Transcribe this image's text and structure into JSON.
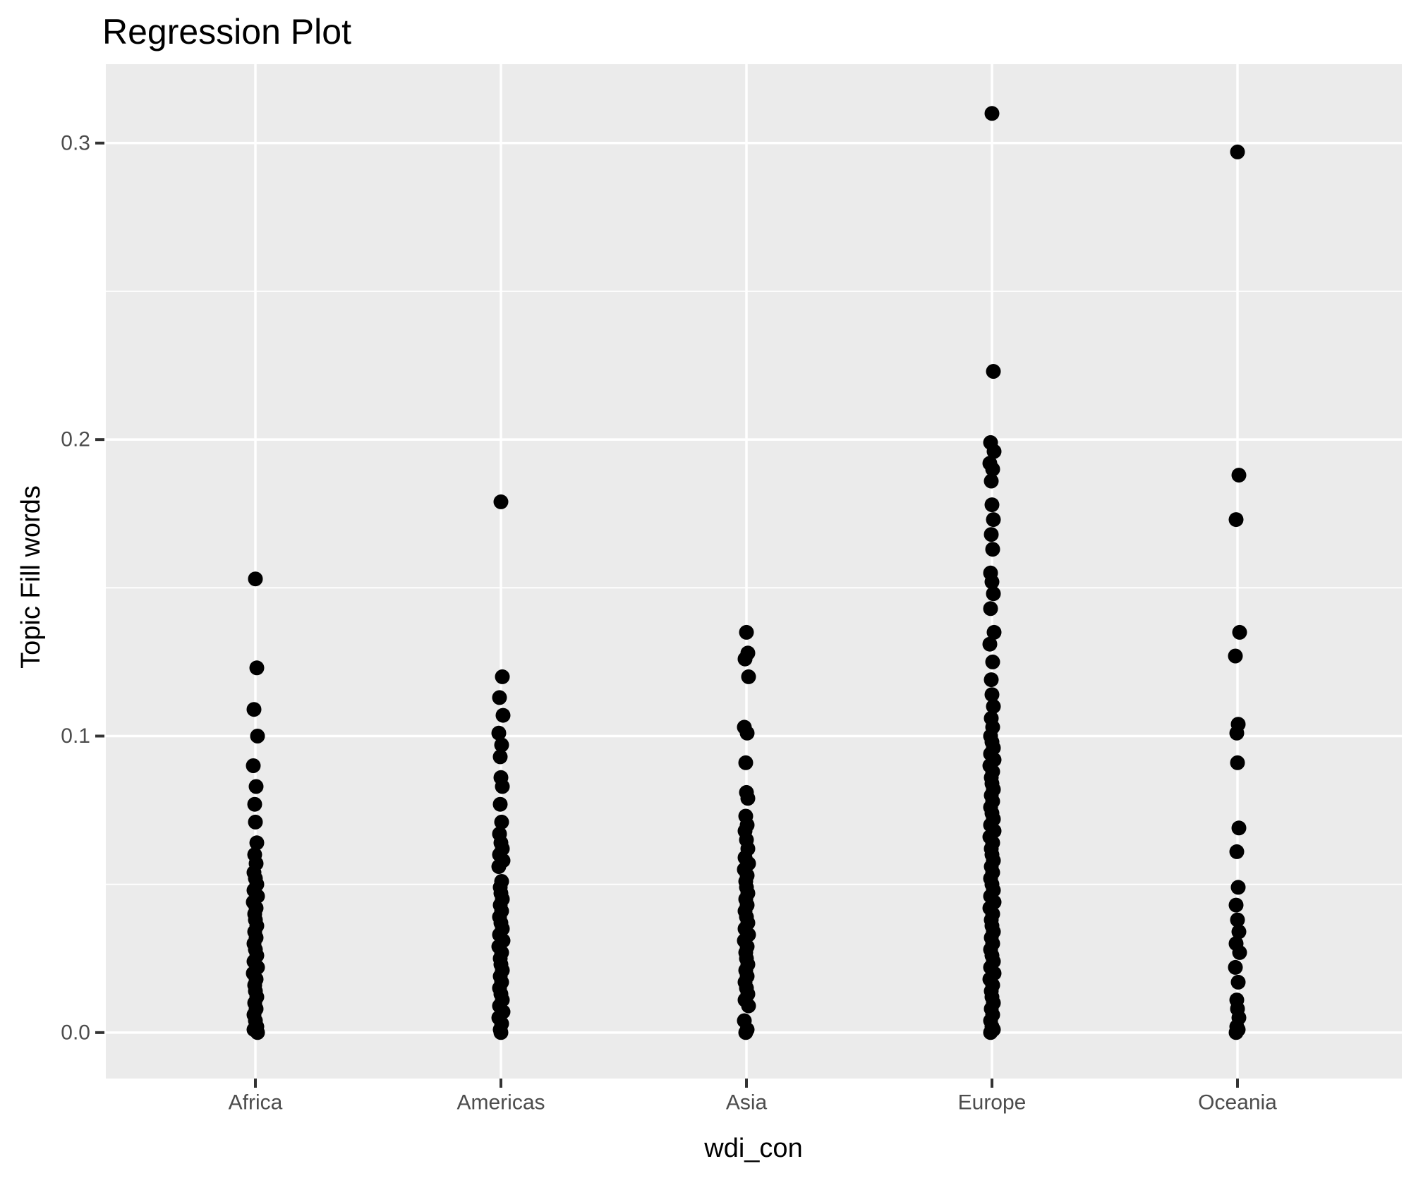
{
  "chart_data": {
    "type": "scatter",
    "title": "Regression Plot",
    "xlabel": "wdi_con",
    "ylabel": "Topic Fill words",
    "categories": [
      "Africa",
      "Americas",
      "Asia",
      "Europe",
      "Oceania"
    ],
    "y_tick_labels": [
      "0.0",
      "0.1",
      "0.2",
      "0.3"
    ],
    "y_tick_values": [
      0.0,
      0.1,
      0.2,
      0.3
    ],
    "y_minor_values": [
      0.05,
      0.15,
      0.25
    ],
    "ylim": [
      -0.0155,
      0.3266
    ],
    "grid": true,
    "legend": "none",
    "colors": {
      "panel_background": "#EBEBEB",
      "gridline": "#FFFFFF",
      "point": "#000000",
      "axis_text": "#4D4D4D",
      "axis_title": "#000000",
      "tick_mark": "#333333",
      "title": "#000000"
    },
    "series": [
      {
        "name": "Africa",
        "values": [
          0.153,
          0.123,
          0.109,
          0.1,
          0.09,
          0.083,
          0.077,
          0.071,
          0.064,
          0.06,
          0.057,
          0.054,
          0.052,
          0.05,
          0.048,
          0.046,
          0.044,
          0.042,
          0.04,
          0.038,
          0.036,
          0.034,
          0.032,
          0.03,
          0.028,
          0.026,
          0.024,
          0.022,
          0.02,
          0.018,
          0.016,
          0.014,
          0.012,
          0.01,
          0.008,
          0.006,
          0.004,
          0.002,
          0.001,
          0.0
        ]
      },
      {
        "name": "Americas",
        "values": [
          0.179,
          0.12,
          0.113,
          0.107,
          0.101,
          0.097,
          0.093,
          0.086,
          0.083,
          0.077,
          0.071,
          0.067,
          0.064,
          0.062,
          0.06,
          0.058,
          0.056,
          0.051,
          0.049,
          0.047,
          0.045,
          0.043,
          0.041,
          0.039,
          0.037,
          0.035,
          0.033,
          0.031,
          0.029,
          0.027,
          0.025,
          0.023,
          0.021,
          0.019,
          0.017,
          0.015,
          0.013,
          0.011,
          0.009,
          0.007,
          0.005,
          0.003,
          0.001,
          0.0
        ]
      },
      {
        "name": "Asia",
        "values": [
          0.135,
          0.128,
          0.126,
          0.12,
          0.103,
          0.101,
          0.091,
          0.081,
          0.079,
          0.073,
          0.07,
          0.068,
          0.065,
          0.062,
          0.059,
          0.057,
          0.055,
          0.053,
          0.051,
          0.049,
          0.047,
          0.045,
          0.043,
          0.041,
          0.039,
          0.037,
          0.035,
          0.033,
          0.031,
          0.029,
          0.027,
          0.025,
          0.023,
          0.021,
          0.019,
          0.017,
          0.015,
          0.013,
          0.011,
          0.009,
          0.004,
          0.001,
          0.0
        ]
      },
      {
        "name": "Europe",
        "values": [
          0.31,
          0.223,
          0.199,
          0.196,
          0.192,
          0.19,
          0.186,
          0.178,
          0.173,
          0.168,
          0.163,
          0.155,
          0.152,
          0.148,
          0.143,
          0.135,
          0.131,
          0.125,
          0.119,
          0.114,
          0.11,
          0.106,
          0.103,
          0.1,
          0.098,
          0.096,
          0.094,
          0.092,
          0.09,
          0.088,
          0.086,
          0.084,
          0.082,
          0.08,
          0.078,
          0.076,
          0.074,
          0.072,
          0.07,
          0.068,
          0.066,
          0.064,
          0.062,
          0.06,
          0.058,
          0.056,
          0.054,
          0.052,
          0.05,
          0.048,
          0.046,
          0.044,
          0.042,
          0.04,
          0.038,
          0.036,
          0.034,
          0.032,
          0.03,
          0.028,
          0.026,
          0.024,
          0.022,
          0.02,
          0.018,
          0.016,
          0.014,
          0.012,
          0.01,
          0.008,
          0.006,
          0.004,
          0.002,
          0.001,
          0.0
        ]
      },
      {
        "name": "Oceania",
        "values": [
          0.297,
          0.188,
          0.173,
          0.135,
          0.127,
          0.104,
          0.101,
          0.091,
          0.069,
          0.061,
          0.049,
          0.043,
          0.038,
          0.034,
          0.03,
          0.027,
          0.022,
          0.017,
          0.011,
          0.008,
          0.005,
          0.002,
          0.001,
          0.0
        ]
      }
    ]
  }
}
